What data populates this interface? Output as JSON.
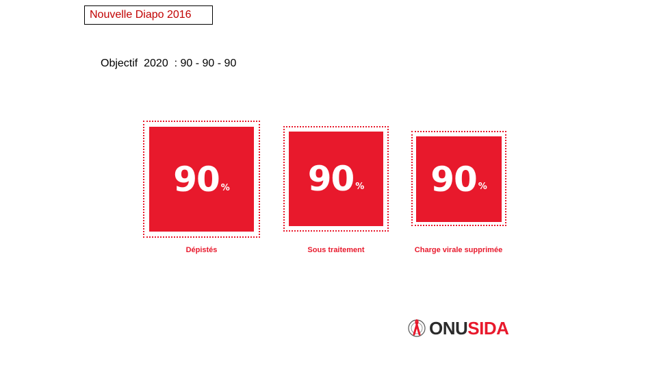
{
  "tag": {
    "label": "Nouvelle Diapo 2016"
  },
  "subtitle": "Objectif  2020  : 90 - 90 - 90",
  "targets": [
    {
      "value": "90",
      "unit": "%",
      "label": "Dépistés"
    },
    {
      "value": "90",
      "unit": "%",
      "label": "Sous traitement"
    },
    {
      "value": "90",
      "unit": "%",
      "label": "Charge virale supprimée"
    }
  ],
  "logo": {
    "word_part1": "ONU",
    "word_part2": "SIDA",
    "icon": "red-ribbon-un-emblem-icon"
  },
  "colors": {
    "accent": "#e8192c",
    "tag_text": "#c00000"
  }
}
